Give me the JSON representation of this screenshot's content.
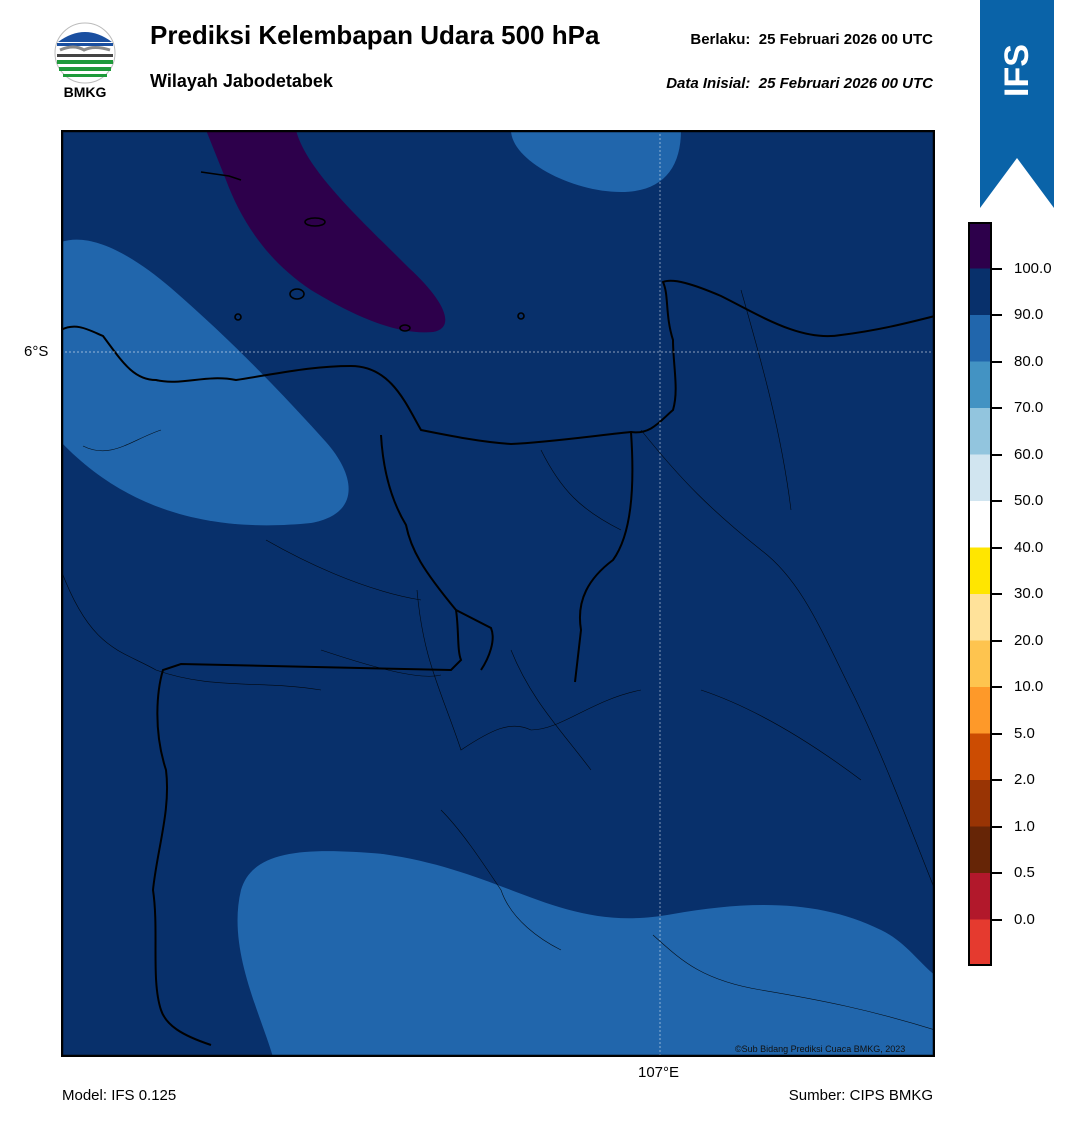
{
  "header": {
    "title": "Prediksi Kelembapan Udara 500 hPa",
    "region": "Wilayah Jabodetabek",
    "valid_label": "Berlaku:",
    "valid_time": "25 Februari 2026 00 UTC",
    "init_label": "Data Inisial:",
    "init_time": "25 Februari 2026 00 UTC"
  },
  "logo": {
    "text": "BMKG"
  },
  "badge": {
    "text": "IFS",
    "color": "#0a63a8"
  },
  "map": {
    "lat_label": "6°S",
    "lon_label": "107°E",
    "credit": "©Sub Bidang Prediksi Cuaca BMKG, 2023",
    "colors": {
      "level_80_90": "#2166ac",
      "level_90_100": "#08306b",
      "level_100_plus": "#2d004b",
      "coastline": "#000000"
    }
  },
  "colorbar": {
    "ticks": [
      "100.0",
      "90.0",
      "80.0",
      "70.0",
      "60.0",
      "50.0",
      "40.0",
      "30.0",
      "20.0",
      "10.0",
      "5.0",
      "2.0",
      "1.0",
      "0.5",
      "0.0"
    ],
    "colors": [
      "#2d004b",
      "#08306b",
      "#2166ac",
      "#4393c3",
      "#92c5de",
      "#d1e5f0",
      "#ffffff",
      "#ffe600",
      "#ffe29a",
      "#fec44f",
      "#fe9929",
      "#cc4c02",
      "#993404",
      "#662506",
      "#b2182b",
      "#e53a2f"
    ]
  },
  "footer": {
    "model": "Model: IFS 0.125",
    "source": "Sumber: CIPS BMKG"
  }
}
